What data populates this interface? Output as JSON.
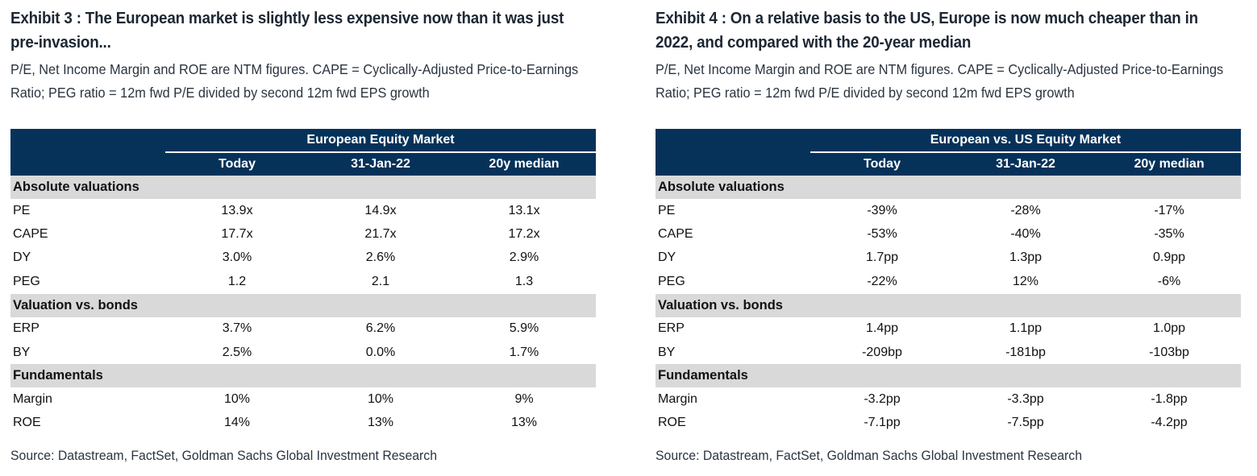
{
  "exhibits": [
    {
      "title": "Exhibit 3 : The European market is slightly less expensive now than it was just pre-invasion...",
      "subtitle": "P/E, Net Income Margin and ROE are NTM figures. CAPE = Cyclically-Adjusted Price-to-Earnings Ratio; PEG ratio = 12m fwd P/E divided by second 12m fwd EPS growth",
      "table": {
        "group_header": "European Equity Market",
        "columns": [
          "Today",
          "31-Jan-22",
          "20y median"
        ],
        "sections": [
          {
            "name": "Absolute valuations",
            "rows": [
              {
                "label": "PE",
                "values": [
                  "13.9x",
                  "14.9x",
                  "13.1x"
                ]
              },
              {
                "label": "CAPE",
                "values": [
                  "17.7x",
                  "21.7x",
                  "17.2x"
                ]
              },
              {
                "label": "DY",
                "values": [
                  "3.0%",
                  "2.6%",
                  "2.9%"
                ]
              },
              {
                "label": "PEG",
                "values": [
                  "1.2",
                  "2.1",
                  "1.3"
                ]
              }
            ]
          },
          {
            "name": "Valuation vs. bonds",
            "rows": [
              {
                "label": "ERP",
                "values": [
                  "3.7%",
                  "6.2%",
                  "5.9%"
                ]
              },
              {
                "label": "BY",
                "values": [
                  "2.5%",
                  "0.0%",
                  "1.7%"
                ]
              }
            ]
          },
          {
            "name": "Fundamentals",
            "rows": [
              {
                "label": "Margin",
                "values": [
                  "10%",
                  "10%",
                  "9%"
                ]
              },
              {
                "label": "ROE",
                "values": [
                  "14%",
                  "13%",
                  "13%"
                ]
              }
            ]
          }
        ]
      },
      "source": "Source: Datastream, FactSet, Goldman Sachs Global Investment Research"
    },
    {
      "title": "Exhibit 4 : On a relative basis to the US, Europe is now much cheaper than in 2022, and compared with the 20-year median",
      "subtitle": "P/E, Net Income Margin and ROE are NTM figures. CAPE = Cyclically-Adjusted Price-to-Earnings Ratio; PEG ratio = 12m fwd P/E divided by second 12m fwd EPS growth",
      "table": {
        "group_header": "European vs. US Equity Market",
        "columns": [
          "Today",
          "31-Jan-22",
          "20y median"
        ],
        "sections": [
          {
            "name": "Absolute valuations",
            "rows": [
              {
                "label": "PE",
                "values": [
                  "-39%",
                  "-28%",
                  "-17%"
                ]
              },
              {
                "label": "CAPE",
                "values": [
                  "-53%",
                  "-40%",
                  "-35%"
                ]
              },
              {
                "label": "DY",
                "values": [
                  "1.7pp",
                  "1.3pp",
                  "0.9pp"
                ]
              },
              {
                "label": "PEG",
                "values": [
                  "-22%",
                  "12%",
                  "-6%"
                ]
              }
            ]
          },
          {
            "name": "Valuation vs. bonds",
            "rows": [
              {
                "label": "ERP",
                "values": [
                  "1.4pp",
                  "1.1pp",
                  "1.0pp"
                ]
              },
              {
                "label": "BY",
                "values": [
                  "-209bp",
                  "-181bp",
                  "-103bp"
                ]
              }
            ]
          },
          {
            "name": "Fundamentals",
            "rows": [
              {
                "label": "Margin",
                "values": [
                  "-3.2pp",
                  "-3.3pp",
                  "-1.8pp"
                ]
              },
              {
                "label": "ROE",
                "values": [
                  "-7.1pp",
                  "-7.5pp",
                  "-4.2pp"
                ]
              }
            ]
          }
        ]
      },
      "source": "Source: Datastream, FactSet, Goldman Sachs Global Investment Research"
    }
  ],
  "colors": {
    "header_bg": "#06325a",
    "header_text": "#ffffff",
    "section_bg": "#d9d9d9"
  }
}
